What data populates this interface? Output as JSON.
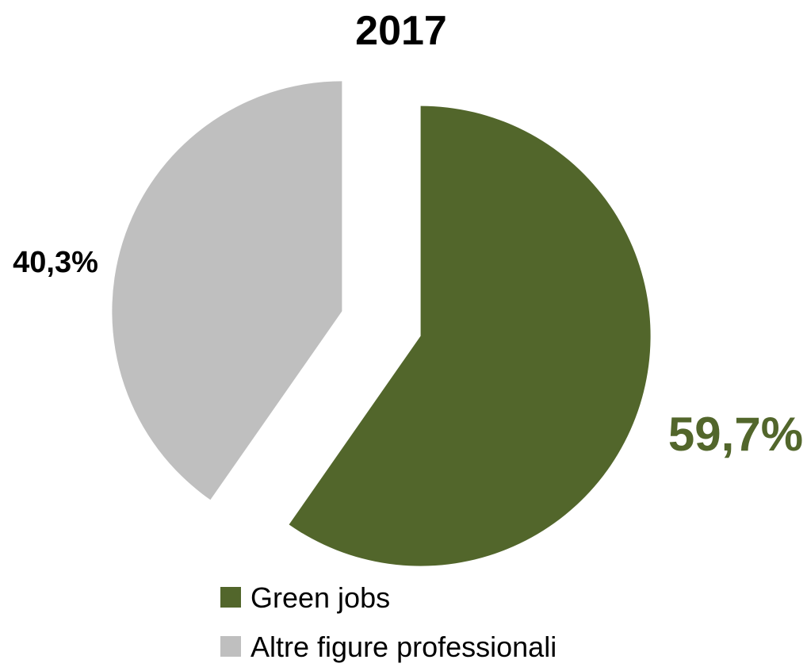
{
  "chart_data": {
    "type": "pie",
    "title": "2017",
    "slices": [
      {
        "name": "Green jobs",
        "value": 59.7,
        "label": "59,7%",
        "color": "#52662b"
      },
      {
        "name": "Altre figure professionali",
        "value": 40.3,
        "label": "40,3%",
        "color": "#bfbfbf"
      }
    ],
    "label_colors": [
      "#52662b",
      "#000000"
    ],
    "legend": {
      "placement": "bottom",
      "items": [
        "Green jobs",
        "Altre figure professionali"
      ]
    },
    "exploded": true
  }
}
